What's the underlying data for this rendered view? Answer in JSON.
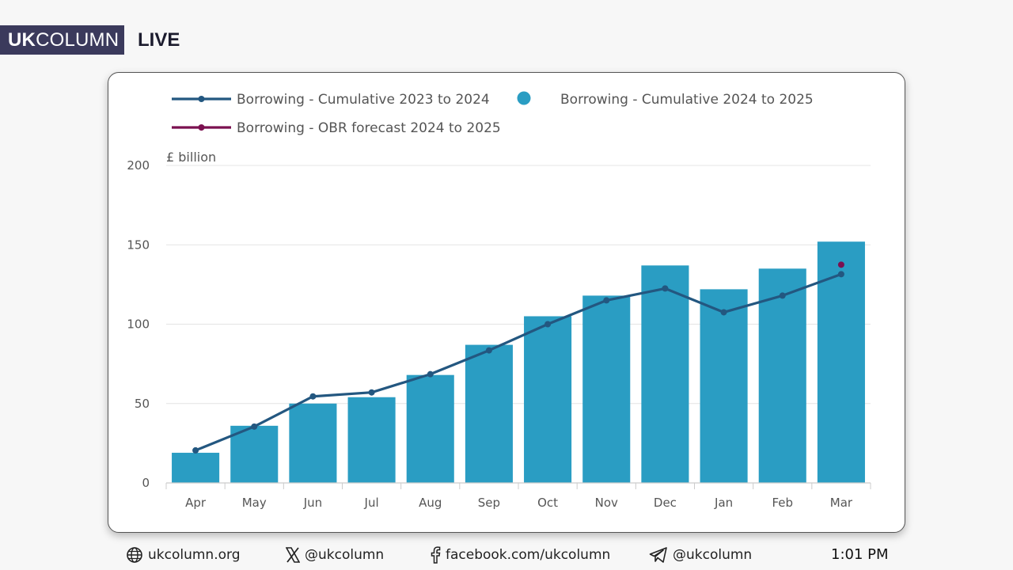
{
  "branding": {
    "logo_bold": "UK",
    "logo_rest": "COLUMN",
    "live_label": "LIVE"
  },
  "chart_data": {
    "type": "bar",
    "categories": [
      "Apr",
      "May",
      "Jun",
      "Jul",
      "Aug",
      "Sep",
      "Oct",
      "Nov",
      "Dec",
      "Jan",
      "Feb",
      "Mar"
    ],
    "series": [
      {
        "name": "Borrowing - Cumulative 2024 to 2025",
        "kind": "bar",
        "color": "#2a9dc3",
        "values": [
          19,
          36,
          50,
          54,
          68,
          87,
          105,
          118,
          137,
          122,
          135,
          152
        ]
      },
      {
        "name": "Borrowing - Cumulative 2023 to 2024",
        "kind": "line",
        "color": "#235780",
        "values": [
          20.5,
          35.5,
          54.5,
          57,
          68.5,
          83.5,
          100,
          115,
          122.5,
          107.5,
          118,
          131.5
        ]
      },
      {
        "name": "Borrowing - OBR forecast 2024 to 2025",
        "kind": "point",
        "color": "#7b1050",
        "category": "Mar",
        "value": 137.5
      }
    ],
    "unit_label": "£ billion",
    "yticks": [
      0,
      50,
      100,
      150,
      200
    ],
    "ylim": [
      0,
      200
    ],
    "grid": true,
    "legend_position": "top-left"
  },
  "footer": {
    "website": "ukcolumn.org",
    "x_handle": "@ukcolumn",
    "facebook": "facebook.com/ukcolumn",
    "telegram": "@ukcolumn",
    "time": "1:01 PM"
  }
}
